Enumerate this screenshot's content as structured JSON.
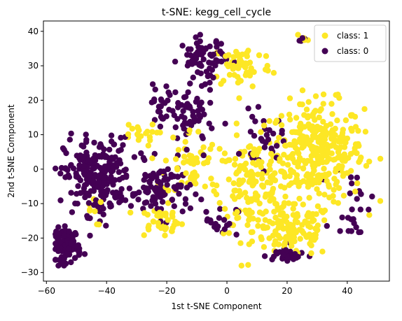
{
  "chart_data": {
    "type": "scatter",
    "title": "t-SNE: kegg_cell_cycle",
    "xlabel": "1st t-SNE Component",
    "ylabel": "2nd t-SNE Component",
    "xlim": [
      -61,
      54
    ],
    "ylim": [
      -32.5,
      43
    ],
    "xticks": [
      -60,
      -40,
      -20,
      0,
      20,
      40
    ],
    "yticks": [
      -30,
      -20,
      -10,
      0,
      10,
      20,
      30,
      40
    ],
    "grid": false,
    "legend_position": "top-right",
    "series": [
      {
        "name": "class: 1",
        "color": "#fde725",
        "clusters": [
          {
            "cx": 30,
            "cy": 5,
            "rx": 14,
            "ry": 13,
            "n": 330
          },
          {
            "cx": 22,
            "cy": -18,
            "rx": 12,
            "ry": 7,
            "n": 120
          },
          {
            "cx": 8,
            "cy": -5,
            "rx": 10,
            "ry": 12,
            "n": 150
          },
          {
            "cx": 5,
            "cy": 30,
            "rx": 9,
            "ry": 6,
            "n": 60
          },
          {
            "cx": -12,
            "cy": 2,
            "rx": 8,
            "ry": 9,
            "n": 55
          },
          {
            "cx": -22,
            "cy": -15,
            "rx": 7,
            "ry": 4,
            "n": 40
          },
          {
            "cx": -30,
            "cy": 10,
            "rx": 6,
            "ry": 3,
            "n": 20
          },
          {
            "cx": 25,
            "cy": 38,
            "rx": 2,
            "ry": 1.5,
            "n": 4
          },
          {
            "cx": -45,
            "cy": -12,
            "rx": 3,
            "ry": 4,
            "n": 8
          }
        ]
      },
      {
        "name": "class: 0",
        "color": "#440154",
        "clusters": [
          {
            "cx": -43,
            "cy": -2,
            "rx": 10,
            "ry": 10,
            "n": 230
          },
          {
            "cx": -53,
            "cy": -22,
            "rx": 4,
            "ry": 4.5,
            "n": 90
          },
          {
            "cx": -8,
            "cy": 32,
            "rx": 7,
            "ry": 6,
            "n": 70
          },
          {
            "cx": -22,
            "cy": -6,
            "rx": 9,
            "ry": 7,
            "n": 90
          },
          {
            "cx": -12,
            "cy": 15,
            "rx": 7,
            "ry": 8,
            "n": 60
          },
          {
            "cx": 20,
            "cy": -25,
            "rx": 6,
            "ry": 2.5,
            "n": 30
          },
          {
            "cx": 12,
            "cy": 8,
            "rx": 6,
            "ry": 7,
            "n": 30
          },
          {
            "cx": -22,
            "cy": 20,
            "rx": 4,
            "ry": 5,
            "n": 20
          },
          {
            "cx": 42,
            "cy": -10,
            "rx": 6,
            "ry": 10,
            "n": 25
          },
          {
            "cx": -2,
            "cy": -15,
            "rx": 5,
            "ry": 4,
            "n": 20
          },
          {
            "cx": 25,
            "cy": 38,
            "rx": 2,
            "ry": 1.5,
            "n": 4
          }
        ]
      }
    ]
  }
}
